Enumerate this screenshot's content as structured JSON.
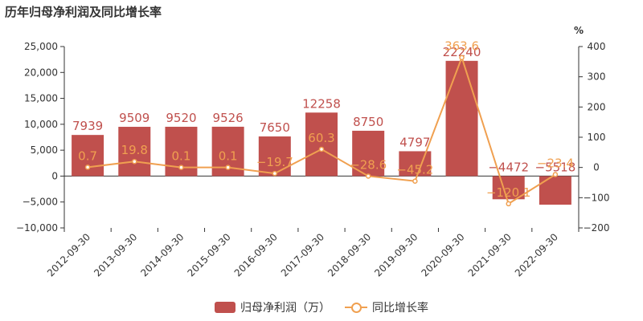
{
  "chart_data": {
    "type": "bar",
    "title": "历年归母净利润及同比增长率",
    "categories": [
      "2012-09-30",
      "2013-09-30",
      "2014-09-30",
      "2015-09-30",
      "2016-09-30",
      "2017-09-30",
      "2018-09-30",
      "2019-09-30",
      "2020-09-30",
      "2021-09-30",
      "2022-09-30"
    ],
    "series": [
      {
        "name": "归母净利润（万）",
        "type": "bar",
        "axis": "left",
        "values": [
          7939,
          9509,
          9520,
          9526,
          7650,
          12258,
          8750,
          4797,
          22240,
          -4472,
          -5518
        ],
        "labels": [
          "7939",
          "9509",
          "9520",
          "9526",
          "7650",
          "12258",
          "8750",
          "4797",
          "22240",
          "−4472",
          "−5518"
        ],
        "color": "#c0504d"
      },
      {
        "name": "同比增长率",
        "type": "line",
        "axis": "right",
        "values": [
          0.7,
          19.8,
          0.1,
          0.1,
          -19.7,
          60.3,
          -28.6,
          -45.2,
          363.6,
          -120.1,
          -23.4
        ],
        "labels": [
          "0.7",
          "19.8",
          "0.1",
          "0.1",
          "−19.7",
          "60.3",
          "−28.6",
          "−45.2",
          "363.6",
          "−120.1",
          "−23.4"
        ],
        "color": "#f0a050"
      }
    ],
    "y_left": {
      "min": -10000,
      "max": 25000,
      "ticks": [
        "−10,000",
        "−5,000",
        "0",
        "5,000",
        "10,000",
        "15,000",
        "20,000",
        "25,000"
      ]
    },
    "y_right": {
      "min": -200,
      "max": 400,
      "unit": "%",
      "ticks": [
        "−200",
        "−100",
        "0",
        "100",
        "200",
        "300",
        "400"
      ]
    },
    "legend_position": "bottom",
    "grid": false
  },
  "legend": {
    "bar_label": "归母净利润（万）",
    "line_label": "同比增长率"
  }
}
